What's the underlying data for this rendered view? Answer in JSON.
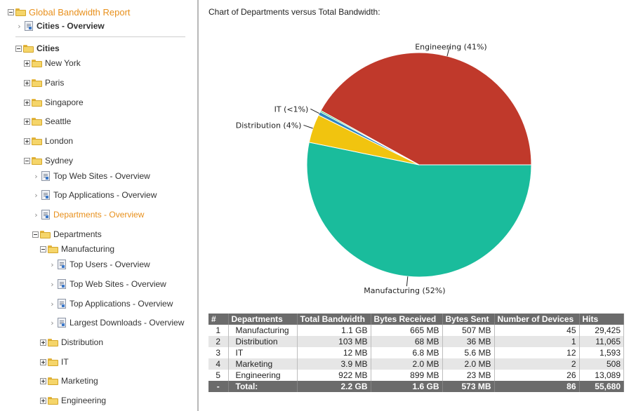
{
  "tree": {
    "root_label": "Global Bandwidth Report",
    "cities_overview_label": "Cities - Overview",
    "cities_label": "Cities",
    "cities": [
      "New York",
      "Paris",
      "Singapore",
      "Seattle",
      "London",
      "Sydney"
    ],
    "sydney_reports": [
      "Top Web Sites - Overview",
      "Top Applications - Overview",
      "Departments - Overview"
    ],
    "departments_label": "Departments",
    "manufacturing_label": "Manufacturing",
    "manufacturing_reports": [
      "Top Users - Overview",
      "Top Web Sites - Overview",
      "Top Applications - Overview",
      "Largest Downloads - Overview"
    ],
    "other_departments": [
      "Distribution",
      "IT",
      "Marketing",
      "Engineering"
    ]
  },
  "main": {
    "heading": "Chart of Departments versus Total Bandwidth:"
  },
  "chart_data": {
    "type": "pie",
    "title": "",
    "slices": [
      {
        "name": "Manufacturing",
        "value": 52,
        "label": "Manufacturing (52%)",
        "color": "#1abc9c"
      },
      {
        "name": "Distribution",
        "value": 4,
        "label": "Distribution (4%)",
        "color": "#f1c40f"
      },
      {
        "name": "IT",
        "value": 0.5,
        "label": "IT (<1%)",
        "color": "#2e86c1"
      },
      {
        "name": "Marketing",
        "value": 0.2,
        "label": "",
        "color": "#2ecc71"
      },
      {
        "name": "Engineering",
        "value": 41,
        "label": "Engineering (41%)",
        "color": "#c0392b"
      }
    ]
  },
  "table": {
    "headers": [
      "#",
      "Departments",
      "Total Bandwidth",
      "Bytes Received",
      "Bytes Sent",
      "Number of Devices",
      "Hits"
    ],
    "rows": [
      [
        "1",
        "Manufacturing",
        "1.1 GB",
        "665 MB",
        "507 MB",
        "45",
        "29,425"
      ],
      [
        "2",
        "Distribution",
        "103 MB",
        "68 MB",
        "36 MB",
        "1",
        "11,065"
      ],
      [
        "3",
        "IT",
        "12 MB",
        "6.8 MB",
        "5.6 MB",
        "12",
        "1,593"
      ],
      [
        "4",
        "Marketing",
        "3.9 MB",
        "2.0 MB",
        "2.0 MB",
        "2",
        "508"
      ],
      [
        "5",
        "Engineering",
        "922 MB",
        "899 MB",
        "23 MB",
        "26",
        "13,089"
      ]
    ],
    "total": [
      "-",
      "Total:",
      "2.2 GB",
      "1.6 GB",
      "573 MB",
      "86",
      "55,680"
    ]
  }
}
